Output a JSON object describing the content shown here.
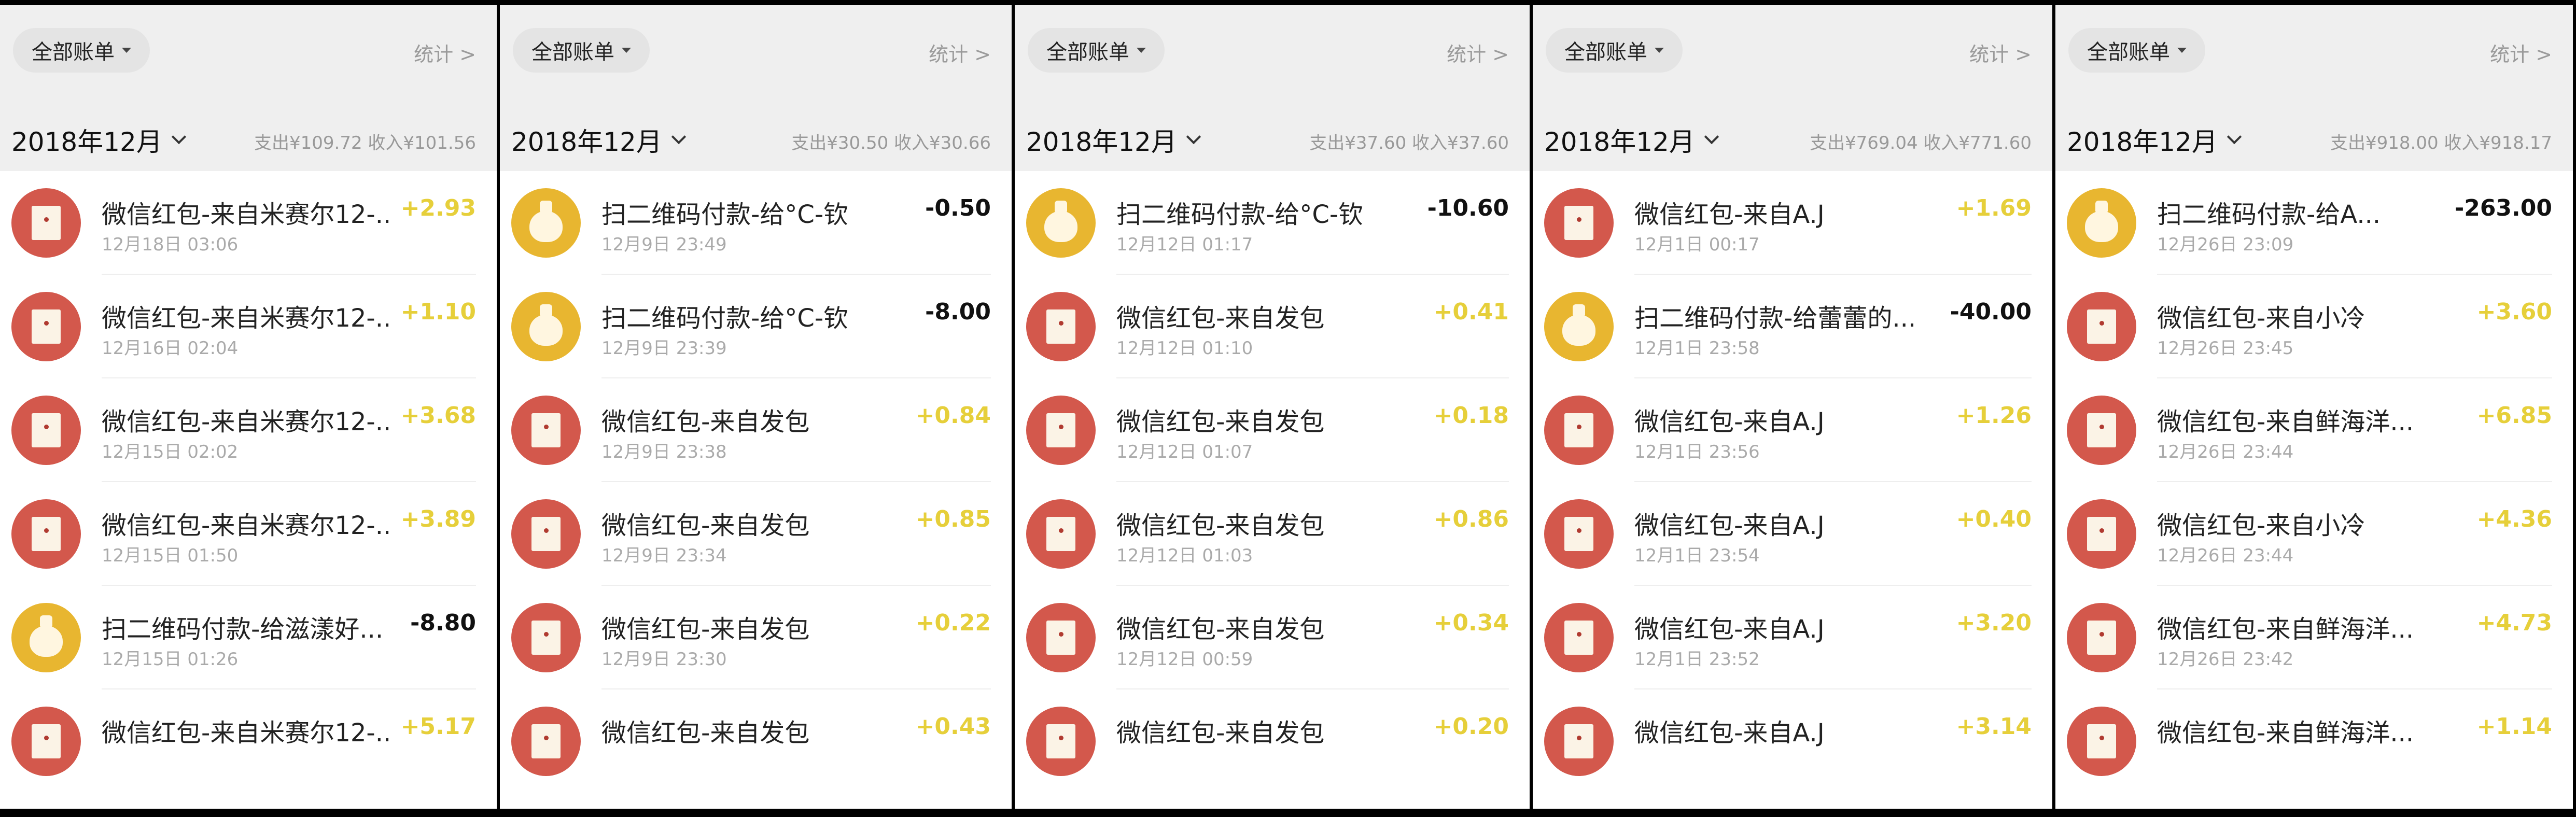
{
  "colors": {
    "income": "#e6cf3a",
    "expense": "#111111",
    "redpacket_icon": "#d3584c",
    "payment_icon": "#e8b630"
  },
  "panels": [
    {
      "filter_label": "全部账单",
      "stats_label": "统计 >",
      "month": "2018年12月",
      "summary": "支出¥109.72  收入¥101.56",
      "items": [
        {
          "icon": "red-packet-icon",
          "title": "微信红包-来自米赛尔12-...",
          "time": "12月18日 03:06",
          "amount": "+2.93",
          "type": "in"
        },
        {
          "icon": "red-packet-icon",
          "title": "微信红包-来自米赛尔12-...",
          "time": "12月16日 02:04",
          "amount": "+1.10",
          "type": "in"
        },
        {
          "icon": "red-packet-icon",
          "title": "微信红包-来自米赛尔12-...",
          "time": "12月15日 02:02",
          "amount": "+3.68",
          "type": "in"
        },
        {
          "icon": "red-packet-icon",
          "title": "微信红包-来自米赛尔12-...",
          "time": "12月15日 01:50",
          "amount": "+3.89",
          "type": "in"
        },
        {
          "icon": "money-bag-icon",
          "title": "扫二维码付款-给滋漾好...",
          "time": "12月15日 01:26",
          "amount": "-8.80",
          "type": "out"
        },
        {
          "icon": "red-packet-icon",
          "title": "微信红包-来自米赛尔12-...",
          "time": "",
          "amount": "+5.17",
          "type": "in"
        }
      ]
    },
    {
      "filter_label": "全部账单",
      "stats_label": "统计 >",
      "month": "2018年12月",
      "summary": "支出¥30.50  收入¥30.66",
      "items": [
        {
          "icon": "money-bag-icon",
          "title": "扫二维码付款-给°C-钦",
          "time": "12月9日 23:49",
          "amount": "-0.50",
          "type": "out"
        },
        {
          "icon": "money-bag-icon",
          "title": "扫二维码付款-给°C-钦",
          "time": "12月9日 23:39",
          "amount": "-8.00",
          "type": "out"
        },
        {
          "icon": "red-packet-icon",
          "title": "微信红包-来自发包",
          "time": "12月9日 23:38",
          "amount": "+0.84",
          "type": "in"
        },
        {
          "icon": "red-packet-icon",
          "title": "微信红包-来自发包",
          "time": "12月9日 23:34",
          "amount": "+0.85",
          "type": "in"
        },
        {
          "icon": "red-packet-icon",
          "title": "微信红包-来自发包",
          "time": "12月9日 23:30",
          "amount": "+0.22",
          "type": "in"
        },
        {
          "icon": "red-packet-icon",
          "title": "微信红包-来自发包",
          "time": "",
          "amount": "+0.43",
          "type": "in"
        }
      ]
    },
    {
      "filter_label": "全部账单",
      "stats_label": "统计 >",
      "month": "2018年12月",
      "summary": "支出¥37.60  收入¥37.60",
      "items": [
        {
          "icon": "money-bag-icon",
          "title": "扫二维码付款-给°C-钦",
          "time": "12月12日 01:17",
          "amount": "-10.60",
          "type": "out"
        },
        {
          "icon": "red-packet-icon",
          "title": "微信红包-来自发包",
          "time": "12月12日 01:10",
          "amount": "+0.41",
          "type": "in"
        },
        {
          "icon": "red-packet-icon",
          "title": "微信红包-来自发包",
          "time": "12月12日 01:07",
          "amount": "+0.18",
          "type": "in"
        },
        {
          "icon": "red-packet-icon",
          "title": "微信红包-来自发包",
          "time": "12月12日 01:03",
          "amount": "+0.86",
          "type": "in"
        },
        {
          "icon": "red-packet-icon",
          "title": "微信红包-来自发包",
          "time": "12月12日 00:59",
          "amount": "+0.34",
          "type": "in"
        },
        {
          "icon": "red-packet-icon",
          "title": "微信红包-来自发包",
          "time": "",
          "amount": "+0.20",
          "type": "in"
        }
      ]
    },
    {
      "filter_label": "全部账单",
      "stats_label": "统计 >",
      "month": "2018年12月",
      "summary": "支出¥769.04  收入¥771.60",
      "items": [
        {
          "icon": "red-packet-icon",
          "title": "微信红包-来自A.J",
          "time": "12月1日 00:17",
          "amount": "+1.69",
          "type": "in"
        },
        {
          "icon": "money-bag-icon",
          "title": "扫二维码付款-给蕾蕾的...",
          "time": "12月1日 23:58",
          "amount": "-40.00",
          "type": "out"
        },
        {
          "icon": "red-packet-icon",
          "title": "微信红包-来自A.J",
          "time": "12月1日 23:56",
          "amount": "+1.26",
          "type": "in"
        },
        {
          "icon": "red-packet-icon",
          "title": "微信红包-来自A.J",
          "time": "12月1日 23:54",
          "amount": "+0.40",
          "type": "in"
        },
        {
          "icon": "red-packet-icon",
          "title": "微信红包-来自A.J",
          "time": "12月1日 23:52",
          "amount": "+3.20",
          "type": "in"
        },
        {
          "icon": "red-packet-icon",
          "title": "微信红包-来自A.J",
          "time": "",
          "amount": "+3.14",
          "type": "in"
        }
      ]
    },
    {
      "filter_label": "全部账单",
      "stats_label": "统计 >",
      "month": "2018年12月",
      "summary": "支出¥918.00  收入¥918.17",
      "items": [
        {
          "icon": "money-bag-icon",
          "title": "扫二维码付款-给A...",
          "time": "12月26日 23:09",
          "amount": "-263.00",
          "type": "out"
        },
        {
          "icon": "red-packet-icon",
          "title": "微信红包-来自小冷",
          "time": "12月26日 23:45",
          "amount": "+3.60",
          "type": "in"
        },
        {
          "icon": "red-packet-icon",
          "title": "微信红包-来自鲜海洋...",
          "time": "12月26日 23:44",
          "amount": "+6.85",
          "type": "in"
        },
        {
          "icon": "red-packet-icon",
          "title": "微信红包-来自小冷",
          "time": "12月26日 23:44",
          "amount": "+4.36",
          "type": "in"
        },
        {
          "icon": "red-packet-icon",
          "title": "微信红包-来自鲜海洋...",
          "time": "12月26日 23:42",
          "amount": "+4.73",
          "type": "in"
        },
        {
          "icon": "red-packet-icon",
          "title": "微信红包-来自鲜海洋...",
          "time": "",
          "amount": "+1.14",
          "type": "in"
        }
      ]
    }
  ]
}
